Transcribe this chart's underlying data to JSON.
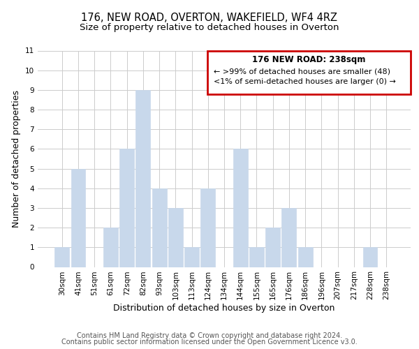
{
  "title": "176, NEW ROAD, OVERTON, WAKEFIELD, WF4 4RZ",
  "subtitle": "Size of property relative to detached houses in Overton",
  "xlabel": "Distribution of detached houses by size in Overton",
  "ylabel": "Number of detached properties",
  "bar_labels": [
    "30sqm",
    "41sqm",
    "51sqm",
    "61sqm",
    "72sqm",
    "82sqm",
    "93sqm",
    "103sqm",
    "113sqm",
    "124sqm",
    "134sqm",
    "144sqm",
    "155sqm",
    "165sqm",
    "176sqm",
    "186sqm",
    "196sqm",
    "207sqm",
    "217sqm",
    "228sqm",
    "238sqm"
  ],
  "bar_values": [
    1,
    5,
    0,
    2,
    6,
    9,
    4,
    3,
    1,
    4,
    0,
    6,
    1,
    2,
    3,
    1,
    0,
    0,
    0,
    1,
    0
  ],
  "bar_color": "#c8d8eb",
  "ylim": [
    0,
    11
  ],
  "yticks": [
    0,
    1,
    2,
    3,
    4,
    5,
    6,
    7,
    8,
    9,
    10,
    11
  ],
  "grid_color": "#cccccc",
  "background_color": "#ffffff",
  "legend_title": "176 NEW ROAD: 238sqm",
  "legend_line1": "← >99% of detached houses are smaller (48)",
  "legend_line2": "<1% of semi-detached houses are larger (0) →",
  "legend_box_edge_color": "#cc0000",
  "footer_line1": "Contains HM Land Registry data © Crown copyright and database right 2024.",
  "footer_line2": "Contains public sector information licensed under the Open Government Licence v3.0.",
  "title_fontsize": 10.5,
  "subtitle_fontsize": 9.5,
  "axis_label_fontsize": 9,
  "tick_fontsize": 7.5,
  "footer_fontsize": 7
}
